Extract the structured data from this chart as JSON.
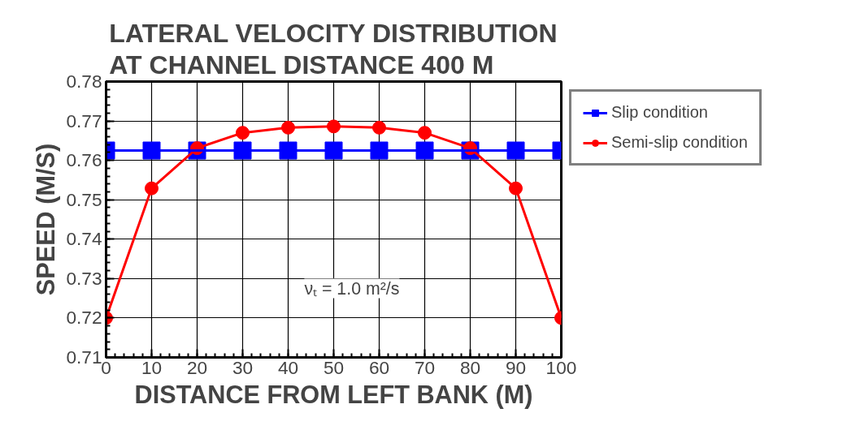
{
  "chart_data": {
    "type": "line",
    "title": "LATERAL VELOCITY DISTRIBUTION\nAT CHANNEL DISTANCE 400 M",
    "xlabel": "DISTANCE FROM LEFT BANK (M)",
    "ylabel": "SPEED (M/S)",
    "x": [
      0,
      10,
      20,
      30,
      40,
      50,
      60,
      70,
      80,
      90,
      100
    ],
    "series": [
      {
        "name": "Slip condition",
        "color": "#0000ff",
        "marker": "square",
        "values": [
          0.7625,
          0.7625,
          0.7625,
          0.7625,
          0.7625,
          0.7625,
          0.7625,
          0.7625,
          0.7625,
          0.7625,
          0.7625
        ]
      },
      {
        "name": "Semi-slip condition",
        "color": "#ff0000",
        "marker": "circle",
        "values": [
          0.72,
          0.7529,
          0.7631,
          0.767,
          0.7683,
          0.7686,
          0.7683,
          0.767,
          0.7631,
          0.7529,
          0.72
        ]
      }
    ],
    "xlim": [
      0,
      100
    ],
    "xticks": [
      0,
      10,
      20,
      30,
      40,
      50,
      60,
      70,
      80,
      90,
      100
    ],
    "ylim": [
      0.71,
      0.78
    ],
    "yticks": [
      {
        "value": 0.71,
        "label": "0.71"
      },
      {
        "value": 0.72,
        "label": "0.72"
      },
      {
        "value": 0.73,
        "label": "0.73"
      },
      {
        "value": 0.74,
        "label": "0.74"
      },
      {
        "value": 0.75,
        "label": "0.75"
      },
      {
        "value": 0.76,
        "label": "0.76"
      },
      {
        "value": 0.77,
        "label": "0.77"
      },
      {
        "value": 0.78,
        "label": "0.78"
      }
    ],
    "annotations": [
      "νₜ = 1.0 m²/s"
    ],
    "grid": true,
    "legend": "top right",
    "line_style": "solid"
  }
}
